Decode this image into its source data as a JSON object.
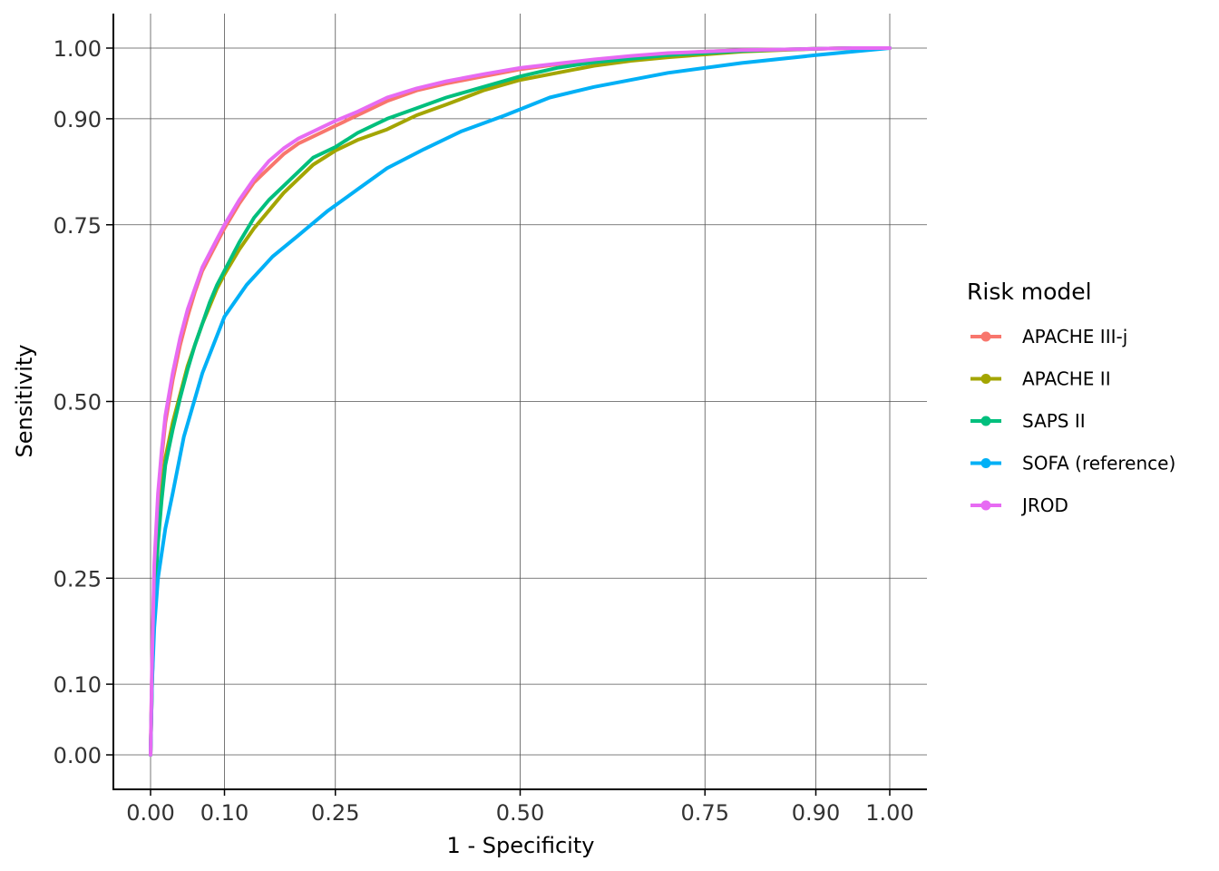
{
  "chart_data": {
    "type": "line",
    "title": "",
    "xlabel": "1 - Specificity",
    "ylabel": "Sensitivity",
    "xlim": [
      0,
      1
    ],
    "ylim": [
      0,
      1
    ],
    "x_ticks": [
      0,
      0.1,
      0.25,
      0.5,
      0.75,
      0.9,
      1
    ],
    "x_tick_labels": [
      "0.00",
      "0.10",
      "0.25",
      "0.50",
      "0.75",
      "0.90",
      "1.00"
    ],
    "y_ticks": [
      0,
      0.1,
      0.25,
      0.5,
      0.75,
      0.9,
      1
    ],
    "y_tick_labels": [
      "0.00",
      "0.10",
      "0.25",
      "0.50",
      "0.75",
      "0.90",
      "1.00"
    ],
    "grid": true,
    "legend": {
      "title": "Risk model",
      "position": "right"
    },
    "series": [
      {
        "name": "APACHE III-j",
        "color": "#F8766D",
        "x": [
          0,
          0.002,
          0.005,
          0.01,
          0.015,
          0.02,
          0.03,
          0.04,
          0.05,
          0.06,
          0.07,
          0.08,
          0.09,
          0.1,
          0.12,
          0.14,
          0.16,
          0.18,
          0.2,
          0.22,
          0.25,
          0.28,
          0.32,
          0.36,
          0.4,
          0.45,
          0.5,
          0.55,
          0.6,
          0.65,
          0.7,
          0.75,
          0.8,
          0.85,
          0.9,
          0.95,
          1
        ],
        "y": [
          0,
          0.12,
          0.26,
          0.36,
          0.42,
          0.47,
          0.53,
          0.58,
          0.62,
          0.655,
          0.685,
          0.705,
          0.725,
          0.745,
          0.78,
          0.81,
          0.83,
          0.85,
          0.865,
          0.875,
          0.89,
          0.905,
          0.925,
          0.94,
          0.95,
          0.96,
          0.97,
          0.977,
          0.983,
          0.988,
          0.992,
          0.995,
          0.997,
          0.998,
          0.999,
          1,
          1
        ]
      },
      {
        "name": "APACHE II",
        "color": "#A3A500",
        "x": [
          0,
          0.002,
          0.005,
          0.01,
          0.015,
          0.02,
          0.03,
          0.04,
          0.05,
          0.06,
          0.07,
          0.08,
          0.09,
          0.1,
          0.12,
          0.14,
          0.16,
          0.18,
          0.2,
          0.22,
          0.25,
          0.28,
          0.32,
          0.36,
          0.4,
          0.45,
          0.5,
          0.55,
          0.6,
          0.65,
          0.7,
          0.75,
          0.8,
          0.85,
          0.9,
          0.95,
          1
        ],
        "y": [
          0,
          0.1,
          0.22,
          0.31,
          0.37,
          0.42,
          0.47,
          0.51,
          0.55,
          0.58,
          0.61,
          0.635,
          0.66,
          0.68,
          0.715,
          0.745,
          0.77,
          0.795,
          0.815,
          0.835,
          0.855,
          0.87,
          0.885,
          0.905,
          0.92,
          0.94,
          0.955,
          0.965,
          0.975,
          0.982,
          0.987,
          0.991,
          0.995,
          0.997,
          0.999,
          1,
          1
        ]
      },
      {
        "name": "SAPS II",
        "color": "#00BF7D",
        "x": [
          0,
          0.002,
          0.005,
          0.01,
          0.015,
          0.02,
          0.03,
          0.04,
          0.05,
          0.06,
          0.07,
          0.08,
          0.09,
          0.1,
          0.12,
          0.14,
          0.16,
          0.18,
          0.2,
          0.22,
          0.25,
          0.28,
          0.32,
          0.36,
          0.4,
          0.45,
          0.5,
          0.55,
          0.6,
          0.65,
          0.7,
          0.75,
          0.8,
          0.85,
          0.9,
          0.95,
          1
        ],
        "y": [
          0,
          0.1,
          0.21,
          0.3,
          0.36,
          0.41,
          0.46,
          0.505,
          0.545,
          0.58,
          0.61,
          0.64,
          0.665,
          0.685,
          0.725,
          0.76,
          0.785,
          0.805,
          0.825,
          0.845,
          0.86,
          0.88,
          0.9,
          0.915,
          0.93,
          0.945,
          0.96,
          0.972,
          0.98,
          0.985,
          0.99,
          0.993,
          0.996,
          0.998,
          0.999,
          1,
          1
        ]
      },
      {
        "name": "SOFA (reference)",
        "color": "#00B0F6",
        "x": [
          0,
          0.002,
          0.005,
          0.01,
          0.02,
          0.03,
          0.045,
          0.07,
          0.1,
          0.13,
          0.165,
          0.2,
          0.24,
          0.28,
          0.32,
          0.37,
          0.42,
          0.48,
          0.54,
          0.6,
          0.7,
          0.8,
          0.9,
          1
        ],
        "y": [
          0,
          0.1,
          0.18,
          0.25,
          0.32,
          0.37,
          0.45,
          0.54,
          0.62,
          0.665,
          0.705,
          0.735,
          0.77,
          0.8,
          0.83,
          0.857,
          0.882,
          0.905,
          0.93,
          0.945,
          0.965,
          0.979,
          0.99,
          1
        ]
      },
      {
        "name": "JROD",
        "color": "#E76BF3",
        "x": [
          0,
          0.002,
          0.005,
          0.01,
          0.015,
          0.02,
          0.03,
          0.04,
          0.05,
          0.06,
          0.07,
          0.08,
          0.09,
          0.1,
          0.12,
          0.14,
          0.16,
          0.18,
          0.2,
          0.22,
          0.25,
          0.28,
          0.32,
          0.36,
          0.4,
          0.45,
          0.5,
          0.55,
          0.6,
          0.65,
          0.7,
          0.75,
          0.8,
          0.85,
          0.9,
          0.95,
          1
        ],
        "y": [
          0,
          0.13,
          0.27,
          0.37,
          0.43,
          0.48,
          0.54,
          0.59,
          0.63,
          0.66,
          0.69,
          0.71,
          0.73,
          0.75,
          0.785,
          0.815,
          0.84,
          0.858,
          0.872,
          0.882,
          0.897,
          0.91,
          0.93,
          0.943,
          0.953,
          0.963,
          0.972,
          0.978,
          0.984,
          0.989,
          0.993,
          0.995,
          0.997,
          0.998,
          0.999,
          1,
          1
        ]
      }
    ]
  }
}
